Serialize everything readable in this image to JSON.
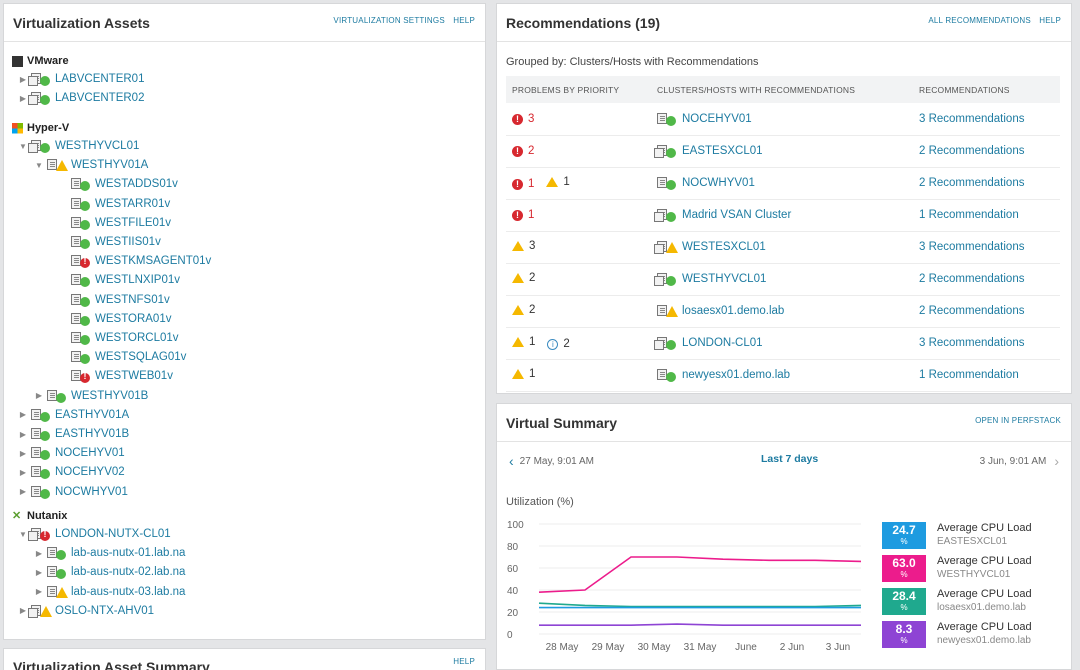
{
  "assets": {
    "title": "Virtualization Assets",
    "links": [
      "VIRTUALIZATION SETTINGS",
      "HELP"
    ],
    "vendors": [
      {
        "name": "VMware",
        "items": [
          {
            "label": "LABVCENTER01",
            "status": "up",
            "level": 0,
            "kind": "vcenter"
          },
          {
            "label": "LABVCENTER02",
            "status": "up",
            "level": 0,
            "kind": "vcenter"
          }
        ]
      },
      {
        "name": "Hyper-V",
        "items": [
          {
            "label": "WESTHYVCL01",
            "status": "up",
            "level": 0,
            "kind": "cluster",
            "expanded": true
          },
          {
            "label": "WESTHYV01A",
            "status": "warn",
            "level": 1,
            "kind": "host",
            "expanded": true
          },
          {
            "label": "WESTADDS01v",
            "status": "up",
            "level": 2,
            "kind": "vm"
          },
          {
            "label": "WESTARR01v",
            "status": "up",
            "level": 2,
            "kind": "vm"
          },
          {
            "label": "WESTFILE01v",
            "status": "up",
            "level": 2,
            "kind": "vm"
          },
          {
            "label": "WESTIIS01v",
            "status": "up",
            "level": 2,
            "kind": "vm"
          },
          {
            "label": "WESTKMSAGENT01v",
            "status": "crit",
            "level": 2,
            "kind": "vm"
          },
          {
            "label": "WESTLNXIP01v",
            "status": "up",
            "level": 2,
            "kind": "vm"
          },
          {
            "label": "WESTNFS01v",
            "status": "up",
            "level": 2,
            "kind": "vm"
          },
          {
            "label": "WESTORA01v",
            "status": "up",
            "level": 2,
            "kind": "vm"
          },
          {
            "label": "WESTORCL01v",
            "status": "up",
            "level": 2,
            "kind": "vm"
          },
          {
            "label": "WESTSQLAG01v",
            "status": "up",
            "level": 2,
            "kind": "vm"
          },
          {
            "label": "WESTWEB01v",
            "status": "crit",
            "level": 2,
            "kind": "vm"
          },
          {
            "label": "WESTHYV01B",
            "status": "up",
            "level": 1,
            "kind": "host"
          },
          {
            "label": "EASTHYV01A",
            "status": "up",
            "level": 0,
            "kind": "host"
          },
          {
            "label": "EASTHYV01B",
            "status": "up",
            "level": 0,
            "kind": "host"
          },
          {
            "label": "NOCEHYV01",
            "status": "up",
            "level": 0,
            "kind": "host"
          },
          {
            "label": "NOCEHYV02",
            "status": "up",
            "level": 0,
            "kind": "host"
          },
          {
            "label": "NOCWHYV01",
            "status": "up",
            "level": 0,
            "kind": "host"
          }
        ]
      },
      {
        "name": "Nutanix",
        "items": [
          {
            "label": "LONDON-NUTX-CL01",
            "status": "crit",
            "level": 0,
            "kind": "cluster",
            "expanded": true
          },
          {
            "label": "lab-aus-nutx-01.lab.na",
            "status": "up",
            "level": 1,
            "kind": "host"
          },
          {
            "label": "lab-aus-nutx-02.lab.na",
            "status": "up",
            "level": 1,
            "kind": "host"
          },
          {
            "label": "lab-aus-nutx-03.lab.na",
            "status": "warn",
            "level": 1,
            "kind": "host"
          },
          {
            "label": "OSLO-NTX-AHV01",
            "status": "warn",
            "level": 0,
            "kind": "cluster"
          }
        ]
      }
    ]
  },
  "summary_panel": {
    "title": "Virtualization Asset Summary",
    "links": [
      "HELP"
    ]
  },
  "recommendations": {
    "title": "Recommendations (19)",
    "links": [
      "ALL RECOMMENDATIONS",
      "HELP"
    ],
    "grouped_by": "Grouped by: Clusters/Hosts with Recommendations",
    "columns": [
      "PROBLEMS BY PRIORITY",
      "CLUSTERS/HOSTS WITH RECOMMENDATIONS",
      "RECOMMENDATIONS"
    ],
    "rows": [
      {
        "problems": [
          {
            "type": "crit",
            "count": "3"
          }
        ],
        "host": "NOCEHYV01",
        "kind": "host",
        "status": "up",
        "recs": "3 Recommendations"
      },
      {
        "problems": [
          {
            "type": "crit",
            "count": "2"
          }
        ],
        "host": "EASTESXCL01",
        "kind": "cluster",
        "status": "up",
        "recs": "2 Recommendations"
      },
      {
        "problems": [
          {
            "type": "crit",
            "count": "1"
          },
          {
            "type": "warn",
            "count": "1"
          }
        ],
        "host": "NOCWHYV01",
        "kind": "host",
        "status": "up",
        "recs": "2 Recommendations"
      },
      {
        "problems": [
          {
            "type": "crit",
            "count": "1"
          }
        ],
        "host": "Madrid VSAN Cluster",
        "kind": "cluster",
        "status": "up",
        "recs": "1 Recommendation"
      },
      {
        "problems": [
          {
            "type": "warn",
            "count": "3"
          }
        ],
        "host": "WESTESXCL01",
        "kind": "cluster",
        "status": "warn",
        "recs": "3 Recommendations"
      },
      {
        "problems": [
          {
            "type": "warn",
            "count": "2"
          }
        ],
        "host": "WESTHYVCL01",
        "kind": "cluster",
        "status": "up",
        "recs": "2 Recommendations"
      },
      {
        "problems": [
          {
            "type": "warn",
            "count": "2"
          }
        ],
        "host": "losaesx01.demo.lab",
        "kind": "host",
        "status": "warn",
        "recs": "2 Recommendations"
      },
      {
        "problems": [
          {
            "type": "warn",
            "count": "1"
          },
          {
            "type": "info",
            "count": "2"
          }
        ],
        "host": "LONDON-CL01",
        "kind": "cluster",
        "status": "up",
        "recs": "3 Recommendations"
      },
      {
        "problems": [
          {
            "type": "warn",
            "count": "1"
          }
        ],
        "host": "newyesx01.demo.lab",
        "kind": "host",
        "status": "up",
        "recs": "1 Recommendation"
      }
    ]
  },
  "virtual_summary": {
    "title": "Virtual Summary",
    "links": [
      "OPEN IN PERFSTACK"
    ],
    "range_start": "27 May, 9:01 AM",
    "range_label": "Last 7 days",
    "range_end": "3 Jun, 9:01 AM",
    "utilization_label": "Utilization (%)",
    "legend": [
      {
        "value": "24.7",
        "unit": "%",
        "label": "Average CPU Load",
        "node": "EASTESXCL01",
        "color": "#1e9be0"
      },
      {
        "value": "63.0",
        "unit": "%",
        "label": "Average CPU Load",
        "node": "WESTHYVCL01",
        "color": "#ec1c8c"
      },
      {
        "value": "28.4",
        "unit": "%",
        "label": "Average CPU Load",
        "node": "losaesx01.demo.lab",
        "color": "#1fa98e"
      },
      {
        "value": "8.3",
        "unit": "%",
        "label": "Average CPU Load",
        "node": "newyesx01.demo.lab",
        "color": "#8e44d4"
      }
    ]
  },
  "chart_data": {
    "type": "line",
    "ylabel": "Utilization (%)",
    "ylim": [
      0,
      100
    ],
    "yticks": [
      "100",
      "80",
      "60",
      "40",
      "20",
      "0"
    ],
    "xticks": [
      "28 May",
      "29 May",
      "30 May",
      "31 May",
      "June",
      "2 Jun",
      "3 Jun"
    ],
    "x": [
      "27 May",
      "28 May",
      "29 May",
      "30 May",
      "31 May",
      "1 Jun",
      "2 Jun",
      "3 Jun"
    ],
    "series": [
      {
        "color": "#ec1c8c",
        "values": [
          38,
          40,
          70,
          70,
          68,
          67,
          67,
          66
        ]
      },
      {
        "color": "#1fa98e",
        "values": [
          28,
          26,
          25,
          25,
          25,
          25,
          25,
          26
        ]
      },
      {
        "color": "#1e9be0",
        "values": [
          24,
          24,
          24,
          24,
          24,
          24,
          24,
          24
        ]
      },
      {
        "color": "#8e44d4",
        "values": [
          8,
          8,
          8,
          9,
          8,
          8,
          8,
          8
        ]
      }
    ]
  }
}
